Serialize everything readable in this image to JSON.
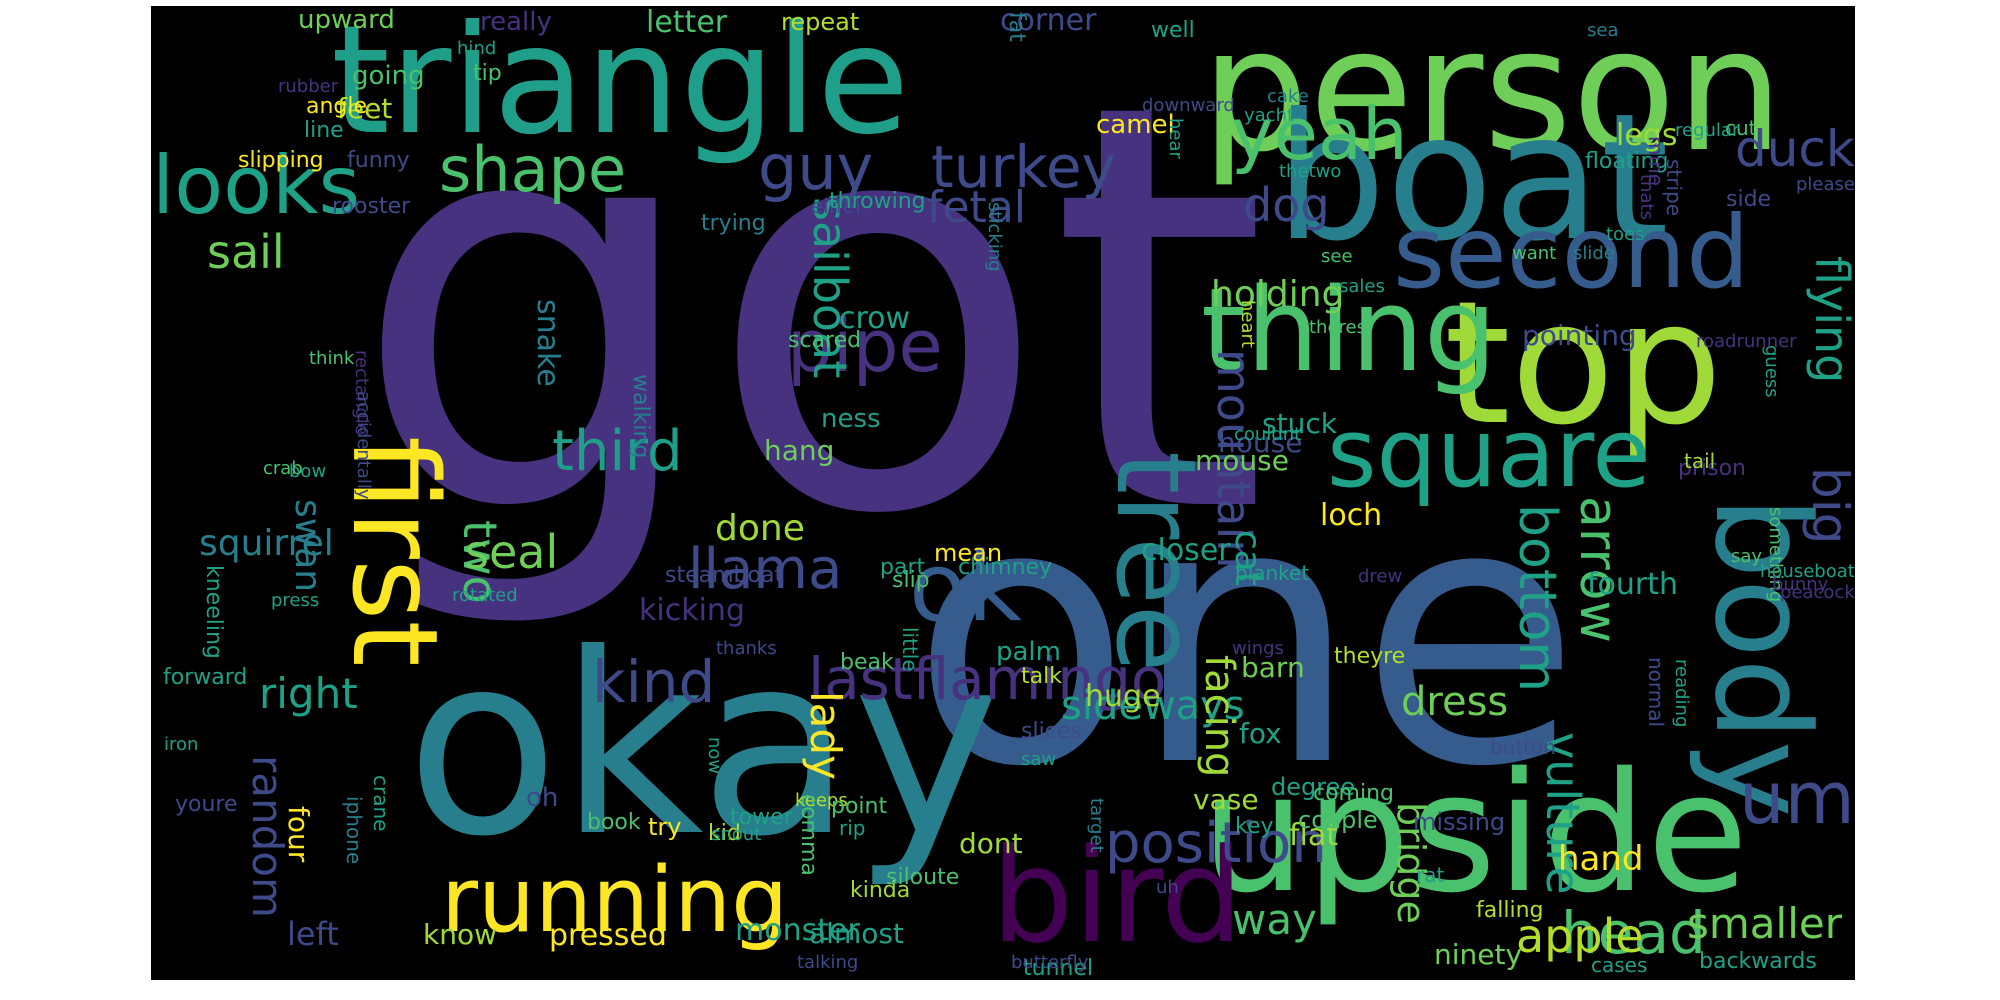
{
  "words": [
    {
      "text": "got",
      "color": "#46327e"
    },
    {
      "text": "one",
      "color": "#365c8d"
    },
    {
      "text": "triangle",
      "color": "#1f9e89"
    },
    {
      "text": "person",
      "color": "#6ece58"
    },
    {
      "text": "okay",
      "color": "#277f8e"
    },
    {
      "text": "upside",
      "color": "#4ac16d"
    },
    {
      "text": "boat",
      "color": "#277f8e"
    },
    {
      "text": "top",
      "color": "#a0da39"
    },
    {
      "text": "bird",
      "color": "#440154"
    },
    {
      "text": "body",
      "color": "#277f8e"
    },
    {
      "text": "first",
      "color": "#fde725"
    },
    {
      "text": "tree",
      "color": "#277f8e"
    },
    {
      "text": "thing",
      "color": "#4ac16d"
    },
    {
      "text": "second",
      "color": "#365c8d"
    },
    {
      "text": "square",
      "color": "#1fa187"
    },
    {
      "text": "running",
      "color": "#fde725"
    },
    {
      "text": "looks",
      "color": "#1fa187"
    },
    {
      "text": "ok",
      "color": "#365c8d"
    },
    {
      "text": "um",
      "color": "#3e4a89"
    },
    {
      "text": "pipe",
      "color": "#46327e"
    },
    {
      "text": "yeah",
      "color": "#4ac16d"
    },
    {
      "text": "shape",
      "color": "#4ac16d"
    },
    {
      "text": "guy",
      "color": "#3e4a89"
    },
    {
      "text": "turkey",
      "color": "#3e4a89"
    },
    {
      "text": "head",
      "color": "#4ac16d"
    },
    {
      "text": "two",
      "color": "#4ac16d"
    },
    {
      "text": "lastflamingo",
      "color": "#46327e"
    },
    {
      "text": "kind",
      "color": "#3e4a89"
    },
    {
      "text": "llama",
      "color": "#3e4a89"
    },
    {
      "text": "arrow",
      "color": "#4ac16d"
    },
    {
      "text": "bottom",
      "color": "#1fa187"
    },
    {
      "text": "mountain",
      "color": "#3e4a89"
    },
    {
      "text": "position",
      "color": "#3e4a89"
    },
    {
      "text": "big",
      "color": "#3e4a89"
    },
    {
      "text": "vulture",
      "color": "#1fa187"
    },
    {
      "text": "duck",
      "color": "#3e4a89"
    },
    {
      "text": "sailboat",
      "color": "#1fa187"
    },
    {
      "text": "dog",
      "color": "#3e4a89"
    },
    {
      "text": "third",
      "color": "#1f9e89"
    },
    {
      "text": "seal",
      "color": "#6ece58"
    },
    {
      "text": "apple",
      "color": "#b5de2b"
    },
    {
      "text": "right",
      "color": "#1fa187"
    },
    {
      "text": "random",
      "color": "#3e4a89"
    },
    {
      "text": "sail",
      "color": "#6ece58"
    },
    {
      "text": "flying",
      "color": "#1fa187"
    },
    {
      "text": "fetal",
      "color": "#3e4a89"
    },
    {
      "text": "holding",
      "color": "#6ece58"
    },
    {
      "text": "way",
      "color": "#4ac16d"
    },
    {
      "text": "smaller",
      "color": "#6ece58"
    },
    {
      "text": "lady",
      "color": "#fde725"
    },
    {
      "text": "swan",
      "color": "#277f8e"
    },
    {
      "text": "dress",
      "color": "#6ece58"
    },
    {
      "text": "sideways",
      "color": "#1fa187"
    },
    {
      "text": "facing",
      "color": "#a0da39"
    },
    {
      "text": "cat",
      "color": "#1fa187"
    },
    {
      "text": "squirrel",
      "color": "#277f8e"
    },
    {
      "text": "bridge",
      "color": "#6ece58"
    },
    {
      "text": "hand",
      "color": "#fde725"
    },
    {
      "text": "done",
      "color": "#a0da39"
    },
    {
      "text": "left",
      "color": "#3e4a89"
    },
    {
      "text": "pressed",
      "color": "#fde725"
    },
    {
      "text": "monster",
      "color": "#1fa187"
    },
    {
      "text": "crow",
      "color": "#1fa187"
    },
    {
      "text": "huge",
      "color": "#a0da39"
    },
    {
      "text": "kicking",
      "color": "#46327e"
    },
    {
      "text": "snake",
      "color": "#277f8e"
    },
    {
      "text": "legs",
      "color": "#a0da39"
    },
    {
      "text": "fourth",
      "color": "#1fa187"
    },
    {
      "text": "pointing",
      "color": "#3e4a89"
    },
    {
      "text": "house",
      "color": "#3e4a89"
    },
    {
      "text": "stuck",
      "color": "#1fa187"
    },
    {
      "text": "mouse",
      "color": "#6ece58"
    },
    {
      "text": "closer",
      "color": "#1fa187"
    },
    {
      "text": "barn",
      "color": "#6ece58"
    },
    {
      "text": "fox",
      "color": "#1fa187"
    },
    {
      "text": "loch",
      "color": "#fde725"
    },
    {
      "text": "vase",
      "color": "#a0da39"
    },
    {
      "text": "flat",
      "color": "#a0da39"
    },
    {
      "text": "four",
      "color": "#fde725"
    },
    {
      "text": "know",
      "color": "#a0da39"
    },
    {
      "text": "almost",
      "color": "#1fa187"
    },
    {
      "text": "tunnel",
      "color": "#1fa187"
    },
    {
      "text": "ninety",
      "color": "#6ece58"
    },
    {
      "text": "backwards",
      "color": "#1fa187"
    },
    {
      "text": "hang",
      "color": "#6ece58"
    },
    {
      "text": "ness",
      "color": "#1fa187"
    },
    {
      "text": "mean",
      "color": "#fde725"
    },
    {
      "text": "camel",
      "color": "#fde725"
    },
    {
      "text": "feet",
      "color": "#b5de2b"
    },
    {
      "text": "upward",
      "color": "#6ece58"
    },
    {
      "text": "really",
      "color": "#46327e"
    },
    {
      "text": "letter",
      "color": "#4ac16d"
    },
    {
      "text": "repeat",
      "color": "#b5de2b"
    },
    {
      "text": "corner",
      "color": "#3e4a89"
    },
    {
      "text": "fat",
      "color": "#277f8e"
    },
    {
      "text": "well",
      "color": "#1fa187"
    },
    {
      "text": "sea",
      "color": "#277f8e"
    },
    {
      "text": "going",
      "color": "#4ac16d"
    },
    {
      "text": "tip",
      "color": "#4ac16d"
    },
    {
      "text": "hind",
      "color": "#1fa187"
    },
    {
      "text": "rubber",
      "color": "#46327e"
    },
    {
      "text": "angle",
      "color": "#fde725"
    },
    {
      "text": "line",
      "color": "#1fa187"
    },
    {
      "text": "slipping",
      "color": "#fde725"
    },
    {
      "text": "funny",
      "color": "#3e4a89"
    },
    {
      "text": "rooster",
      "color": "#3e4a89"
    },
    {
      "text": "eiffel",
      "color": "#3e4a89"
    },
    {
      "text": "throwing",
      "color": "#1fa187"
    },
    {
      "text": "trying",
      "color": "#277f8e"
    },
    {
      "text": "think",
      "color": "#4ac16d"
    },
    {
      "text": "rectangle",
      "color": "#46327e"
    },
    {
      "text": "crab",
      "color": "#4ac16d"
    },
    {
      "text": "bow",
      "color": "#1fa187"
    },
    {
      "text": "accidentally",
      "color": "#3e4a89"
    },
    {
      "text": "kneeling",
      "color": "#1fa187"
    },
    {
      "text": "forward",
      "color": "#1fa187"
    },
    {
      "text": "iron",
      "color": "#1fa187"
    },
    {
      "text": "youre",
      "color": "#3e4a89"
    },
    {
      "text": "iphone",
      "color": "#277f8e"
    },
    {
      "text": "crane",
      "color": "#1fa187"
    },
    {
      "text": "press",
      "color": "#1fa187"
    },
    {
      "text": "rotated",
      "color": "#1fa187"
    },
    {
      "text": "steamboat",
      "color": "#3e4a89"
    },
    {
      "text": "thanks",
      "color": "#3e4a89"
    },
    {
      "text": "beak",
      "color": "#4ac16d"
    },
    {
      "text": "little",
      "color": "#1fa187"
    },
    {
      "text": "scared",
      "color": "#4ac16d"
    },
    {
      "text": "walking",
      "color": "#277f8e"
    },
    {
      "text": "oh",
      "color": "#3e4a89"
    },
    {
      "text": "book",
      "color": "#4ac16d"
    },
    {
      "text": "try",
      "color": "#fde725"
    },
    {
      "text": "kid",
      "color": "#b5de2b"
    },
    {
      "text": "snout",
      "color": "#1fa187"
    },
    {
      "text": "keeps",
      "color": "#b5de2b"
    },
    {
      "text": "now",
      "color": "#1fa187"
    },
    {
      "text": "tower",
      "color": "#1fa187"
    },
    {
      "text": "point",
      "color": "#4ac16d"
    },
    {
      "text": "comma",
      "color": "#4ac16d"
    },
    {
      "text": "rip",
      "color": "#1fa187"
    },
    {
      "text": "talking",
      "color": "#3e4a89"
    },
    {
      "text": "kinda",
      "color": "#a0da39"
    },
    {
      "text": "siloute",
      "color": "#4ac16d"
    },
    {
      "text": "slices",
      "color": "#3e4a89"
    },
    {
      "text": "saw",
      "color": "#1fa187"
    },
    {
      "text": "butterfly",
      "color": "#3e4a89"
    },
    {
      "text": "part",
      "color": "#1fa187"
    },
    {
      "text": "chimney",
      "color": "#1fa187"
    },
    {
      "text": "slip",
      "color": "#4ac16d"
    },
    {
      "text": "palm",
      "color": "#1fa187"
    },
    {
      "text": "talk",
      "color": "#b5de2b"
    },
    {
      "text": "dont",
      "color": "#a0da39"
    },
    {
      "text": "degree",
      "color": "#1fa187"
    },
    {
      "text": "target",
      "color": "#277f8e"
    },
    {
      "text": "uh",
      "color": "#3e4a89"
    },
    {
      "text": "key",
      "color": "#1fa187"
    },
    {
      "text": "couple",
      "color": "#4ac16d"
    },
    {
      "text": "missing",
      "color": "#3e4a89"
    },
    {
      "text": "coming",
      "color": "#4ac16d"
    },
    {
      "text": "rat",
      "color": "#1fa187"
    },
    {
      "text": "falling",
      "color": "#b5de2b"
    },
    {
      "text": "cases",
      "color": "#1fa187"
    },
    {
      "text": "button",
      "color": "#3e4a89"
    },
    {
      "text": "normal",
      "color": "#3e4a89"
    },
    {
      "text": "reading",
      "color": "#1fa187"
    },
    {
      "text": "wings",
      "color": "#46327e"
    },
    {
      "text": "theyre",
      "color": "#b5de2b"
    },
    {
      "text": "something",
      "color": "#4ac16d"
    },
    {
      "text": "houseboat",
      "color": "#1fa187"
    },
    {
      "text": "peacock",
      "color": "#46327e"
    },
    {
      "text": "bunny",
      "color": "#46327e"
    },
    {
      "text": "blanket",
      "color": "#1fa187"
    },
    {
      "text": "drew",
      "color": "#46327e"
    },
    {
      "text": "prison",
      "color": "#46327e"
    },
    {
      "text": "say",
      "color": "#4ac16d"
    },
    {
      "text": "guess",
      "color": "#1fa187"
    },
    {
      "text": "tail",
      "color": "#a0da39"
    },
    {
      "text": "roadrunner",
      "color": "#46327e"
    },
    {
      "text": "couldnt",
      "color": "#1fa187"
    },
    {
      "text": "heart",
      "color": "#b5de2b"
    },
    {
      "text": "theres",
      "color": "#4ac16d"
    },
    {
      "text": "sales",
      "color": "#1fa187"
    },
    {
      "text": "see",
      "color": "#4ac16d"
    },
    {
      "text": "want",
      "color": "#4ac16d"
    },
    {
      "text": "slide",
      "color": "#277f8e"
    },
    {
      "text": "toes",
      "color": "#1fa187"
    },
    {
      "text": "thats",
      "color": "#46327e"
    },
    {
      "text": "please",
      "color": "#3e4a89"
    },
    {
      "text": "side",
      "color": "#3e4a89"
    },
    {
      "text": "cut",
      "color": "#4ac16d"
    },
    {
      "text": "regular",
      "color": "#1fa187"
    },
    {
      "text": "floating",
      "color": "#1fa187"
    },
    {
      "text": "stripe",
      "color": "#3e4a89"
    },
    {
      "text": "mine",
      "color": "#46327e"
    },
    {
      "text": "thetwo",
      "color": "#1fa187"
    },
    {
      "text": "yacht",
      "color": "#1fa187"
    },
    {
      "text": "cake",
      "color": "#277f8e"
    },
    {
      "text": "hear",
      "color": "#1fa187"
    },
    {
      "text": "downward",
      "color": "#3e4a89"
    },
    {
      "text": "sticking",
      "color": "#277f8e"
    }
  ]
}
